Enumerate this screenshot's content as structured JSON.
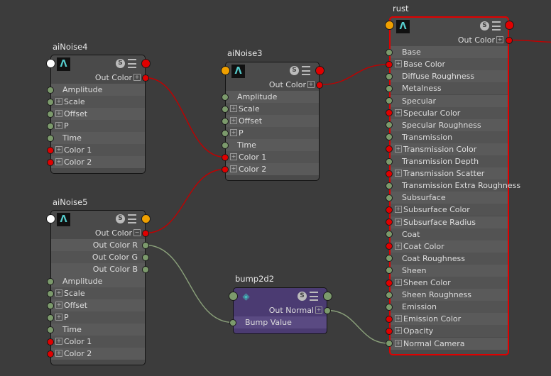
{
  "colors": {
    "red": "#e00000",
    "green": "#7c9a6c",
    "white": "#ffffff",
    "orange": "#f0a000",
    "wire_red": "#c00000",
    "wire_green": "#8aa07a"
  },
  "nodes": [
    {
      "id": "aiNoise4",
      "title": "aiNoise4",
      "logo": "Λ",
      "in_port": "white",
      "out_port": "red",
      "outputs": [
        {
          "label": "Out Color",
          "port": "red",
          "exp": "⊞"
        }
      ],
      "inputs": [
        {
          "label": "Amplitude",
          "port": "green"
        },
        {
          "label": "Scale",
          "port": "green",
          "exp": "⊞"
        },
        {
          "label": "Offset",
          "port": "green",
          "exp": "⊞"
        },
        {
          "label": "P",
          "port": "green",
          "exp": "⊞"
        },
        {
          "label": "Time",
          "port": "green"
        },
        {
          "label": "Color 1",
          "port": "red",
          "exp": "⊞"
        },
        {
          "label": "Color 2",
          "port": "red",
          "exp": "⊞"
        }
      ]
    },
    {
      "id": "aiNoise3",
      "title": "aiNoise3",
      "logo": "Λ",
      "in_port": "orange",
      "out_port": "red",
      "outputs": [
        {
          "label": "Out Color",
          "port": "red",
          "exp": "⊞"
        }
      ],
      "inputs": [
        {
          "label": "Amplitude",
          "port": "green"
        },
        {
          "label": "Scale",
          "port": "green",
          "exp": "⊞"
        },
        {
          "label": "Offset",
          "port": "green",
          "exp": "⊞"
        },
        {
          "label": "P",
          "port": "green",
          "exp": "⊞"
        },
        {
          "label": "Time",
          "port": "green"
        },
        {
          "label": "Color 1",
          "port": "red",
          "exp": "⊞"
        },
        {
          "label": "Color 2",
          "port": "red",
          "exp": "⊞"
        }
      ]
    },
    {
      "id": "aiNoise5",
      "title": "aiNoise5",
      "logo": "Λ",
      "in_port": "white",
      "out_port": "orange",
      "outputs": [
        {
          "label": "Out Color",
          "port": "red",
          "exp": "⊟"
        },
        {
          "label": "Out Color R",
          "port": "green"
        },
        {
          "label": "Out Color G",
          "port": "green"
        },
        {
          "label": "Out Color B",
          "port": "green"
        }
      ],
      "inputs": [
        {
          "label": "Amplitude",
          "port": "green"
        },
        {
          "label": "Scale",
          "port": "green",
          "exp": "⊞"
        },
        {
          "label": "Offset",
          "port": "green",
          "exp": "⊞"
        },
        {
          "label": "P",
          "port": "green",
          "exp": "⊞"
        },
        {
          "label": "Time",
          "port": "green"
        },
        {
          "label": "Color 1",
          "port": "red",
          "exp": "⊞"
        },
        {
          "label": "Color 2",
          "port": "red",
          "exp": "⊞"
        }
      ]
    },
    {
      "id": "bump2d2",
      "title": "bump2d2",
      "logo": "◈",
      "in_port": "green",
      "out_port": "green",
      "outputs": [
        {
          "label": "Out Normal",
          "port": "green",
          "exp": "⊞"
        }
      ],
      "inputs": [
        {
          "label": "Bump Value",
          "port": "green"
        }
      ]
    },
    {
      "id": "rust",
      "title": "rust",
      "logo": "Λ",
      "in_port": "orange",
      "out_port": "red",
      "selected": true,
      "outputs": [
        {
          "label": "Out Color",
          "port": "red",
          "exp": "⊞"
        }
      ],
      "inputs": [
        {
          "label": "Base",
          "port": "green"
        },
        {
          "label": "Base Color",
          "port": "red",
          "exp": "⊞"
        },
        {
          "label": "Diffuse Roughness",
          "port": "green"
        },
        {
          "label": "Metalness",
          "port": "green"
        },
        {
          "label": "Specular",
          "port": "green"
        },
        {
          "label": "Specular Color",
          "port": "red",
          "exp": "⊞"
        },
        {
          "label": "Specular Roughness",
          "port": "green"
        },
        {
          "label": "Transmission",
          "port": "green"
        },
        {
          "label": "Transmission Color",
          "port": "red",
          "exp": "⊞"
        },
        {
          "label": "Transmission Depth",
          "port": "green"
        },
        {
          "label": "Transmission Scatter",
          "port": "red",
          "exp": "⊞"
        },
        {
          "label": "Transmission Extra Roughness",
          "port": "green"
        },
        {
          "label": "Subsurface",
          "port": "green"
        },
        {
          "label": "Subsurface Color",
          "port": "red",
          "exp": "⊞"
        },
        {
          "label": "Subsurface Radius",
          "port": "red",
          "exp": "⊞"
        },
        {
          "label": "Coat",
          "port": "green"
        },
        {
          "label": "Coat Color",
          "port": "red",
          "exp": "⊞"
        },
        {
          "label": "Coat Roughness",
          "port": "green"
        },
        {
          "label": "Sheen",
          "port": "green"
        },
        {
          "label": "Sheen Color",
          "port": "red",
          "exp": "⊞"
        },
        {
          "label": "Sheen Roughness",
          "port": "green"
        },
        {
          "label": "Emission",
          "port": "green"
        },
        {
          "label": "Emission Color",
          "port": "red",
          "exp": "⊞"
        },
        {
          "label": "Opacity",
          "port": "red",
          "exp": "⊞"
        },
        {
          "label": "Normal Camera",
          "port": "green",
          "exp": "⊞"
        }
      ]
    }
  ],
  "connections": [
    {
      "from": "aiNoise4.Out Color",
      "to": "aiNoise3.Color 1",
      "color": "wire_red"
    },
    {
      "from": "aiNoise5.Out Color",
      "to": "aiNoise3.Color 2",
      "color": "wire_red"
    },
    {
      "from": "aiNoise3.Out Color",
      "to": "rust.Base Color",
      "color": "wire_red"
    },
    {
      "from": "aiNoise5.Out Color R",
      "to": "bump2d2.Bump Value",
      "color": "wire_green"
    },
    {
      "from": "bump2d2.Out Normal",
      "to": "rust.Normal Camera",
      "color": "wire_green"
    },
    {
      "from": "rust.Out Color",
      "to": "offscreen",
      "color": "wire_red"
    }
  ]
}
